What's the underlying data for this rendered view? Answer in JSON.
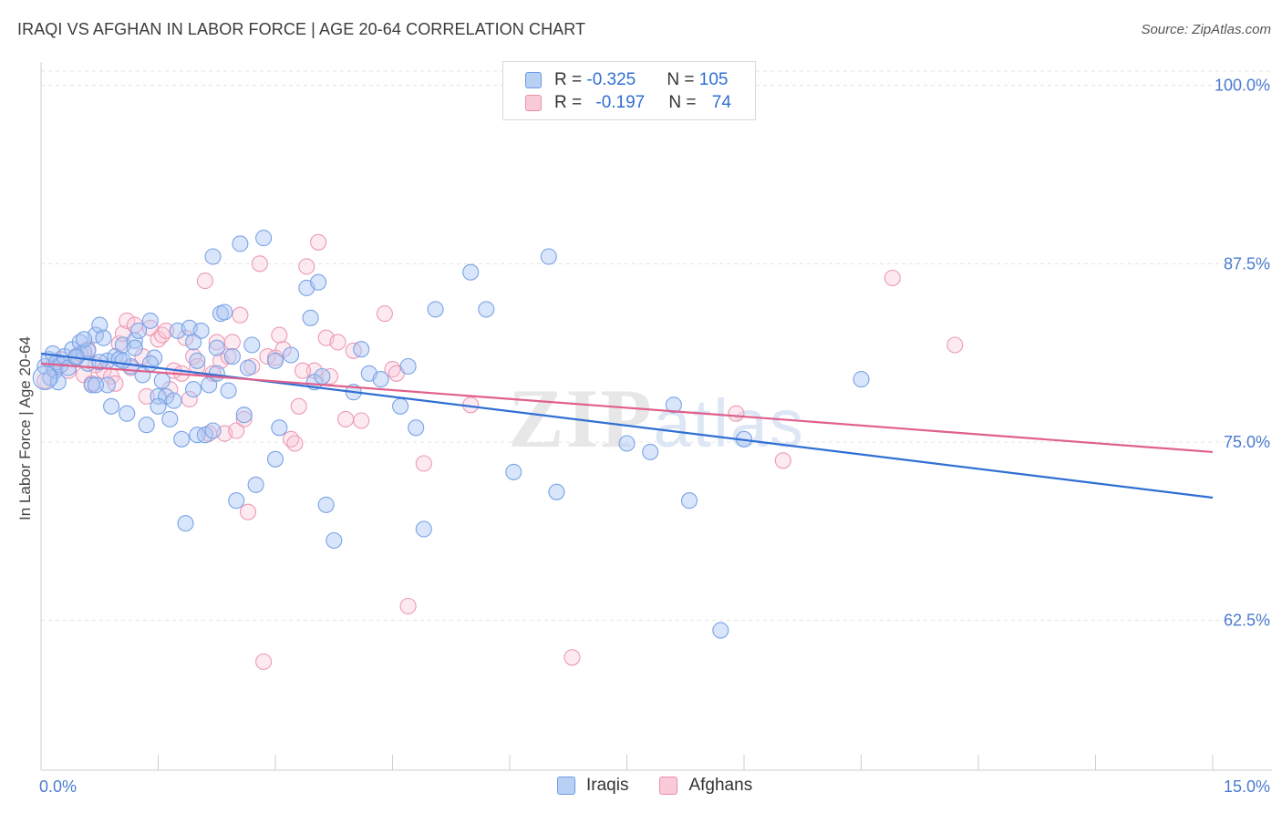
{
  "title": "IRAQI VS AFGHAN IN LABOR FORCE | AGE 20-64 CORRELATION CHART",
  "source": "Source: ZipAtlas.com",
  "watermark": "ZIPatlas",
  "colors": {
    "iraqis": "#6c9be4",
    "iraqis_line": "#2f6fd4",
    "afghans": "#ec8fad",
    "afghans_line": "#e0608b",
    "tick_text": "#4a7bd0"
  },
  "legend_top": {
    "rows": [
      {
        "r_label": "R = ",
        "r_value": "-0.325",
        "n_label": "N = ",
        "n_value": "105"
      },
      {
        "r_label": "R = ",
        "r_value": "-0.197",
        "n_label": "N = ",
        "n_value": "74"
      }
    ]
  },
  "legend_bottom": [
    "Iraqis",
    "Afghans"
  ],
  "chart_data": {
    "type": "scatter",
    "title": "IRAQI VS AFGHAN IN LABOR FORCE | AGE 20-64 CORRELATION CHART",
    "ylabel": "In Labor Force | Age 20-64",
    "xlabel": "",
    "xlim": [
      0,
      15
    ],
    "ylim": [
      52,
      101
    ],
    "x_tick_labels": [
      "0.0%",
      "15.0%"
    ],
    "y_ticks": [
      100.0,
      87.5,
      75.0,
      62.5
    ],
    "y_tick_labels": [
      "100.0%",
      "87.5%",
      "75.0%",
      "62.5%"
    ],
    "grid": true,
    "legend_position": "top-center",
    "series": [
      {
        "name": "Iraqis",
        "trend": {
          "x": [
            0.0,
            15.0
          ],
          "y": [
            81.2,
            71.1
          ]
        },
        "points": [
          [
            0.05,
            80.3
          ],
          [
            0.1,
            80.8
          ],
          [
            0.12,
            79.5
          ],
          [
            0.15,
            81.2
          ],
          [
            0.18,
            80.0
          ],
          [
            0.2,
            80.6
          ],
          [
            0.22,
            79.2
          ],
          [
            0.25,
            80.4
          ],
          [
            0.3,
            81.0
          ],
          [
            0.35,
            80.2
          ],
          [
            0.4,
            81.5
          ],
          [
            0.45,
            80.9
          ],
          [
            0.5,
            82.0
          ],
          [
            0.55,
            81.3
          ],
          [
            0.6,
            80.5
          ],
          [
            0.65,
            79.0
          ],
          [
            0.7,
            82.5
          ],
          [
            0.75,
            83.2
          ],
          [
            0.8,
            82.3
          ],
          [
            0.85,
            80.7
          ],
          [
            0.9,
            77.5
          ],
          [
            0.95,
            81.0
          ],
          [
            1.0,
            80.8
          ],
          [
            1.05,
            81.8
          ],
          [
            1.1,
            77.0
          ],
          [
            1.15,
            80.3
          ],
          [
            1.2,
            82.1
          ],
          [
            1.25,
            82.8
          ],
          [
            1.3,
            79.7
          ],
          [
            1.35,
            76.2
          ],
          [
            1.4,
            83.5
          ],
          [
            1.45,
            80.9
          ],
          [
            1.5,
            78.2
          ],
          [
            1.55,
            79.3
          ],
          [
            1.6,
            78.2
          ],
          [
            1.65,
            76.6
          ],
          [
            1.7,
            77.9
          ],
          [
            1.75,
            82.8
          ],
          [
            1.8,
            75.2
          ],
          [
            1.85,
            69.3
          ],
          [
            1.9,
            83.0
          ],
          [
            1.95,
            78.7
          ],
          [
            2.0,
            75.5
          ],
          [
            2.05,
            82.8
          ],
          [
            2.1,
            75.5
          ],
          [
            2.15,
            79.0
          ],
          [
            2.2,
            75.8
          ],
          [
            2.25,
            81.6
          ],
          [
            2.3,
            84.0
          ],
          [
            2.35,
            84.1
          ],
          [
            2.4,
            78.6
          ],
          [
            2.45,
            81.0
          ],
          [
            2.5,
            70.9
          ],
          [
            2.55,
            88.9
          ],
          [
            2.6,
            76.9
          ],
          [
            2.65,
            80.2
          ],
          [
            2.7,
            81.8
          ],
          [
            2.75,
            72.0
          ],
          [
            2.85,
            89.3
          ],
          [
            3.0,
            73.8
          ],
          [
            3.05,
            76.0
          ],
          [
            3.2,
            81.1
          ],
          [
            3.4,
            85.8
          ],
          [
            3.45,
            83.7
          ],
          [
            3.5,
            79.2
          ],
          [
            3.55,
            86.2
          ],
          [
            3.6,
            79.6
          ],
          [
            3.65,
            70.6
          ],
          [
            3.75,
            68.1
          ],
          [
            4.0,
            78.5
          ],
          [
            4.1,
            81.5
          ],
          [
            4.2,
            79.8
          ],
          [
            4.35,
            79.4
          ],
          [
            4.6,
            77.5
          ],
          [
            4.7,
            80.3
          ],
          [
            4.8,
            76.0
          ],
          [
            4.9,
            68.9
          ],
          [
            5.05,
            84.3
          ],
          [
            5.5,
            86.9
          ],
          [
            5.7,
            84.3
          ],
          [
            6.05,
            72.9
          ],
          [
            6.5,
            88.0
          ],
          [
            6.6,
            71.5
          ],
          [
            7.5,
            74.9
          ],
          [
            7.8,
            74.3
          ],
          [
            8.1,
            77.6
          ],
          [
            8.3,
            70.9
          ],
          [
            8.7,
            61.8
          ],
          [
            9.0,
            75.2
          ],
          [
            10.5,
            79.4
          ],
          [
            1.05,
            80.7
          ],
          [
            1.2,
            81.6
          ],
          [
            0.85,
            79.0
          ],
          [
            0.6,
            81.4
          ],
          [
            2.0,
            80.7
          ],
          [
            1.5,
            77.5
          ],
          [
            2.2,
            88.0
          ],
          [
            3.0,
            80.7
          ],
          [
            0.55,
            82.2
          ],
          [
            1.95,
            82.0
          ],
          [
            2.25,
            79.8
          ],
          [
            0.7,
            79.0
          ],
          [
            0.45,
            81.0
          ],
          [
            1.4,
            80.5
          ],
          [
            0.75,
            80.6
          ]
        ]
      },
      {
        "name": "Afghans",
        "trend": {
          "x": [
            0.0,
            15.0
          ],
          "y": [
            80.5,
            74.3
          ]
        },
        "points": [
          [
            0.05,
            79.3
          ],
          [
            0.15,
            80.3
          ],
          [
            0.25,
            80.8
          ],
          [
            0.35,
            80.0
          ],
          [
            0.45,
            80.9
          ],
          [
            0.55,
            79.7
          ],
          [
            0.6,
            81.5
          ],
          [
            0.65,
            79.1
          ],
          [
            0.7,
            80.4
          ],
          [
            0.8,
            80.0
          ],
          [
            0.9,
            79.6
          ],
          [
            0.95,
            79.1
          ],
          [
            1.0,
            81.9
          ],
          [
            1.05,
            82.6
          ],
          [
            1.1,
            83.5
          ],
          [
            1.2,
            83.2
          ],
          [
            1.3,
            81.0
          ],
          [
            1.35,
            78.2
          ],
          [
            1.4,
            83.0
          ],
          [
            1.5,
            82.2
          ],
          [
            1.55,
            82.5
          ],
          [
            1.6,
            82.8
          ],
          [
            1.65,
            78.7
          ],
          [
            1.7,
            80.0
          ],
          [
            1.8,
            79.8
          ],
          [
            1.85,
            82.3
          ],
          [
            1.9,
            78.0
          ],
          [
            1.95,
            81.0
          ],
          [
            2.0,
            80.3
          ],
          [
            2.1,
            86.3
          ],
          [
            2.2,
            79.8
          ],
          [
            2.25,
            82.0
          ],
          [
            2.3,
            80.7
          ],
          [
            2.35,
            75.6
          ],
          [
            2.4,
            81.0
          ],
          [
            2.45,
            82.0
          ],
          [
            2.5,
            75.8
          ],
          [
            2.55,
            83.9
          ],
          [
            2.6,
            76.6
          ],
          [
            2.7,
            80.3
          ],
          [
            2.8,
            87.5
          ],
          [
            2.9,
            81.0
          ],
          [
            3.0,
            80.9
          ],
          [
            3.05,
            82.5
          ],
          [
            3.1,
            81.5
          ],
          [
            3.2,
            75.2
          ],
          [
            3.25,
            74.9
          ],
          [
            3.3,
            77.5
          ],
          [
            3.4,
            87.3
          ],
          [
            3.5,
            80.0
          ],
          [
            3.55,
            89.0
          ],
          [
            3.65,
            82.3
          ],
          [
            3.7,
            79.6
          ],
          [
            3.8,
            82.0
          ],
          [
            3.9,
            76.6
          ],
          [
            4.0,
            81.4
          ],
          [
            4.1,
            76.5
          ],
          [
            4.4,
            84.0
          ],
          [
            4.5,
            80.1
          ],
          [
            4.55,
            79.8
          ],
          [
            4.7,
            63.5
          ],
          [
            4.9,
            73.5
          ],
          [
            5.5,
            77.6
          ],
          [
            6.8,
            59.9
          ],
          [
            8.9,
            77.0
          ],
          [
            9.5,
            73.7
          ],
          [
            10.9,
            86.5
          ],
          [
            11.7,
            81.8
          ],
          [
            2.85,
            59.6
          ],
          [
            2.65,
            70.1
          ],
          [
            1.15,
            80.2
          ],
          [
            0.5,
            81.2
          ],
          [
            2.15,
            75.6
          ],
          [
            3.35,
            80.0
          ]
        ]
      }
    ]
  }
}
